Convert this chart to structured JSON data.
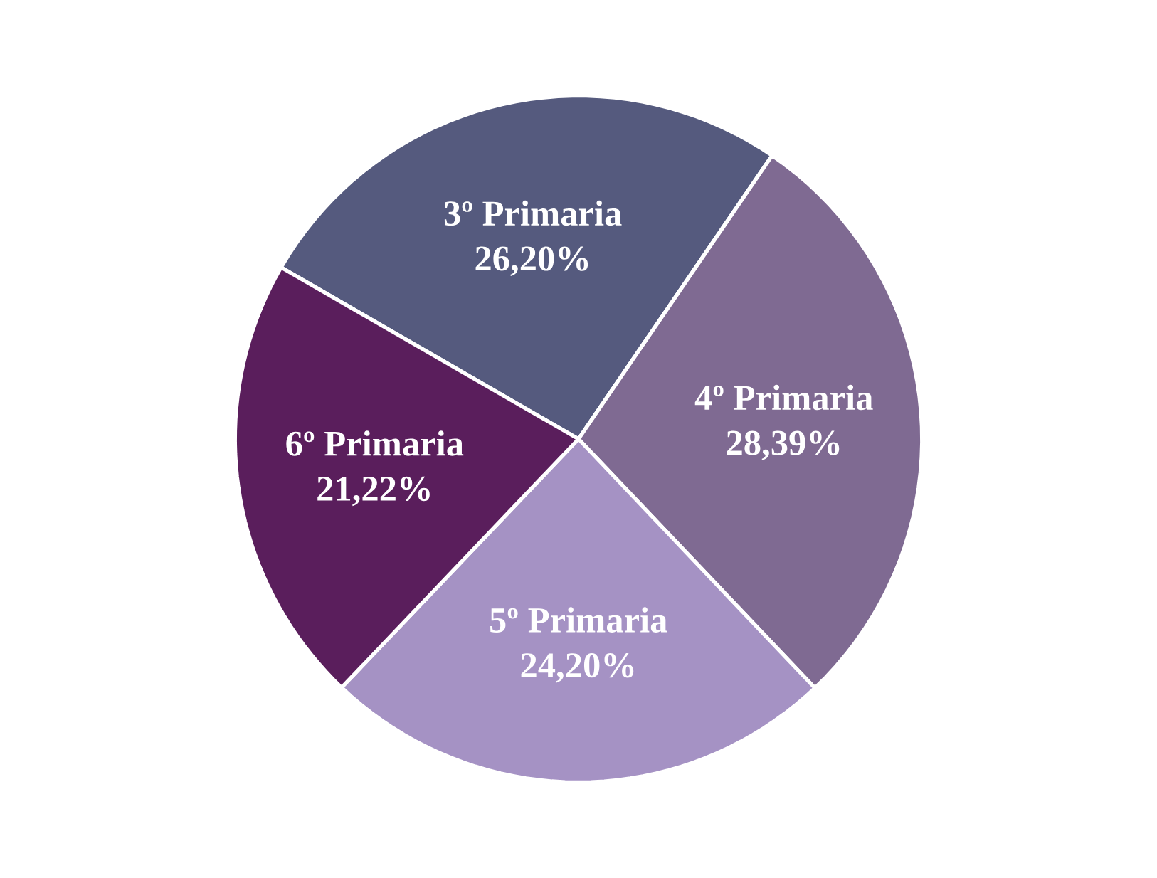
{
  "chart_data": {
    "type": "pie",
    "categories": [
      "3º Primaria",
      "4º Primaria",
      "5º Primaria",
      "6º Primaria"
    ],
    "values": [
      26.2,
      28.39,
      24.2,
      21.22
    ],
    "value_labels": [
      "26,20%",
      "28,39%",
      "24,20%",
      "21,22%"
    ],
    "colors": [
      "#555a7e",
      "#7f6a92",
      "#a592c4",
      "#5a1e5c"
    ]
  }
}
